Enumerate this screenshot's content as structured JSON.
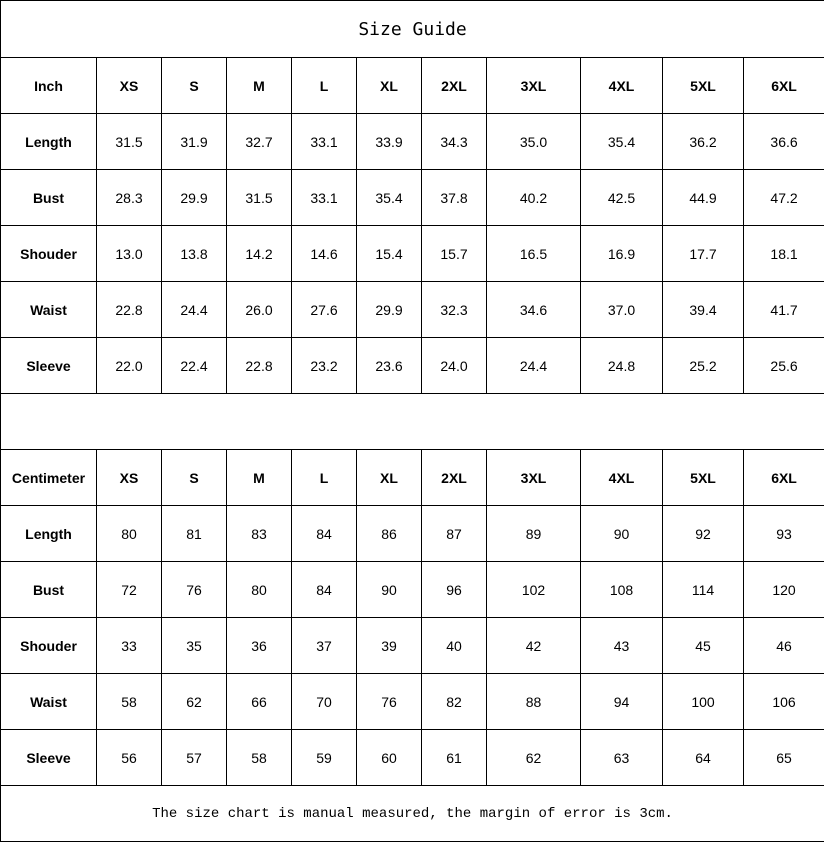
{
  "title": "Size Guide",
  "sizes": [
    "XS",
    "S",
    "M",
    "L",
    "XL",
    "2XL",
    "3XL",
    "4XL",
    "5XL",
    "6XL"
  ],
  "tables": [
    {
      "unit": "Inch",
      "rows": [
        {
          "label": "Length",
          "values": [
            "31.5",
            "31.9",
            "32.7",
            "33.1",
            "33.9",
            "34.3",
            "35.0",
            "35.4",
            "36.2",
            "36.6"
          ]
        },
        {
          "label": "Bust",
          "values": [
            "28.3",
            "29.9",
            "31.5",
            "33.1",
            "35.4",
            "37.8",
            "40.2",
            "42.5",
            "44.9",
            "47.2"
          ]
        },
        {
          "label": "Shouder",
          "values": [
            "13.0",
            "13.8",
            "14.2",
            "14.6",
            "15.4",
            "15.7",
            "16.5",
            "16.9",
            "17.7",
            "18.1"
          ]
        },
        {
          "label": "Waist",
          "values": [
            "22.8",
            "24.4",
            "26.0",
            "27.6",
            "29.9",
            "32.3",
            "34.6",
            "37.0",
            "39.4",
            "41.7"
          ]
        },
        {
          "label": "Sleeve",
          "values": [
            "22.0",
            "22.4",
            "22.8",
            "23.2",
            "23.6",
            "24.0",
            "24.4",
            "24.8",
            "25.2",
            "25.6"
          ]
        }
      ]
    },
    {
      "unit": "Centimeter",
      "rows": [
        {
          "label": "Length",
          "values": [
            "80",
            "81",
            "83",
            "84",
            "86",
            "87",
            "89",
            "90",
            "92",
            "93"
          ]
        },
        {
          "label": "Bust",
          "values": [
            "72",
            "76",
            "80",
            "84",
            "90",
            "96",
            "102",
            "108",
            "114",
            "120"
          ]
        },
        {
          "label": "Shouder",
          "values": [
            "33",
            "35",
            "36",
            "37",
            "39",
            "40",
            "42",
            "43",
            "45",
            "46"
          ]
        },
        {
          "label": "Waist",
          "values": [
            "58",
            "62",
            "66",
            "70",
            "76",
            "82",
            "88",
            "94",
            "100",
            "106"
          ]
        },
        {
          "label": "Sleeve",
          "values": [
            "56",
            "57",
            "58",
            "59",
            "60",
            "61",
            "62",
            "63",
            "64",
            "65"
          ]
        }
      ]
    }
  ],
  "note": "The size chart is manual measured, the margin of error is 3cm."
}
